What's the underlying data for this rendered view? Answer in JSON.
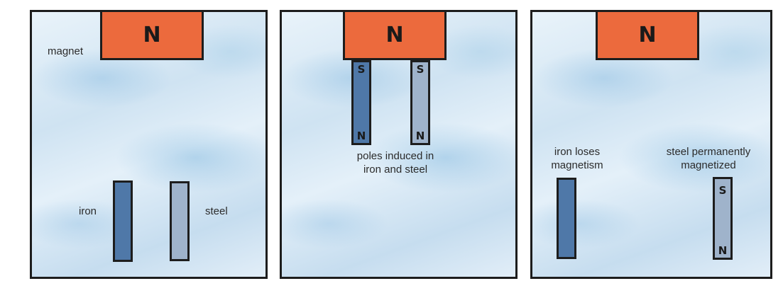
{
  "panels": [
    {
      "magnet_label": "magnet",
      "magnet_pole": "N",
      "iron_label": "iron",
      "steel_label": "steel"
    },
    {
      "magnet_pole": "N",
      "iron_top_pole": "S",
      "iron_bottom_pole": "N",
      "steel_top_pole": "S",
      "steel_bottom_pole": "N",
      "caption_line1": "poles induced in",
      "caption_line2": "iron and steel"
    },
    {
      "magnet_pole": "N",
      "iron_caption_line1": "iron loses",
      "iron_caption_line2": "magnetism",
      "steel_caption_line1": "steel permanently",
      "steel_caption_line2": "magnetized",
      "steel_top_pole": "S",
      "steel_bottom_pole": "N"
    }
  ],
  "colors": {
    "magnet": "#ec6a3d",
    "iron": "#4f78a8",
    "steel": "#9fb3cb",
    "background": "#d6e8f5",
    "outline": "#1d1d1d"
  }
}
